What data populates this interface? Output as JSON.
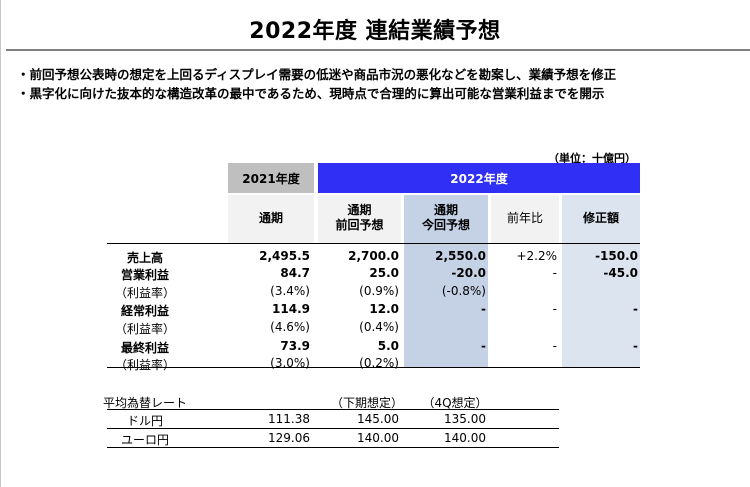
{
  "title": "2022年度 連結業績予想",
  "bullets": [
    "・前回予想公表時の想定を上回るディスプレイ需要の低迷や商品市況の悪化などを勘案し、業績予想を修正",
    "・黒字化に向けた抜本的な構造改革の最中であるため、現時点で合理的に算出可能な営業利益までを開示"
  ],
  "unit": "（単位：十億円）",
  "headers": {
    "fy2021": "2021年度",
    "fy2022": "2022年度",
    "col1": "通期",
    "col2_l1": "通期",
    "col2_l2": "前回予想",
    "col3_l1": "通期",
    "col3_l2": "今回予想",
    "col4": "前年比",
    "col5": "修正額"
  },
  "rows": [
    {
      "label": "売上高",
      "v1": "2,495.5",
      "v2": "2,700.0",
      "v3": "2,550.0",
      "v4": "+2.2%",
      "v5": "-150.0"
    },
    {
      "label": "営業利益",
      "v1": "84.7",
      "v2": "25.0",
      "v3": "-20.0",
      "v4": "-",
      "v5": "-45.0"
    },
    {
      "label": "（利益率）",
      "v1": "(3.4%)",
      "v2": "(0.9%)",
      "v3": "(-0.8%)",
      "v4": "",
      "v5": ""
    },
    {
      "label": "経常利益",
      "v1": "114.9",
      "v2": "12.0",
      "v3": "-",
      "v4": "-",
      "v5": "-"
    },
    {
      "label": "（利益率）",
      "v1": "(4.6%)",
      "v2": "(0.4%)",
      "v3": "",
      "v4": "",
      "v5": ""
    },
    {
      "label": "最終利益",
      "v1": "73.9",
      "v2": "5.0",
      "v3": "-",
      "v4": "-",
      "v5": "-"
    },
    {
      "label": "（利益率）",
      "v1": "(3.0%)",
      "v2": "(0.2%)",
      "v3": "",
      "v4": "",
      "v5": ""
    }
  ],
  "rates": {
    "title": "平均為替レート",
    "h2": "（下期想定）",
    "h3": "（4Q想定）",
    "rows": [
      {
        "label": "ドル円",
        "v1": "111.38",
        "v2": "145.00",
        "v3": "135.00"
      },
      {
        "label": "ユーロ円",
        "v1": "129.06",
        "v2": "140.00",
        "v3": "140.00"
      }
    ]
  }
}
